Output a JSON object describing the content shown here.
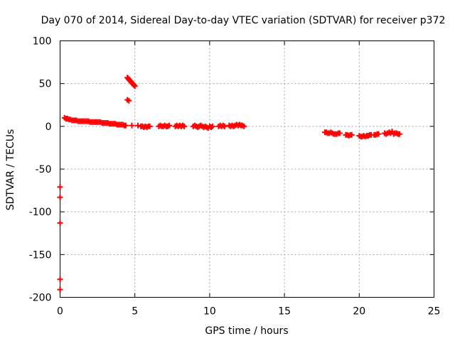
{
  "chart_data": {
    "type": "scatter",
    "title": "Day 070 of 2014, Sidereal Day-to-day VTEC variation (SDTVAR) for receiver p372",
    "xlabel": "GPS time / hours",
    "ylabel": "SDTVAR / TECUs",
    "xlim": [
      0,
      25
    ],
    "ylim": [
      -200,
      100
    ],
    "xticks": [
      0,
      5,
      10,
      15,
      20,
      25
    ],
    "yticks": [
      -200,
      -150,
      -100,
      -50,
      0,
      50,
      100
    ],
    "grid": true,
    "marker": "plus",
    "color": "#ff0000",
    "series": [
      {
        "name": "SDTVAR",
        "points": [
          [
            0.0,
            -71
          ],
          [
            0.0,
            -83
          ],
          [
            0.0,
            -113
          ],
          [
            0.0,
            -179
          ],
          [
            0.0,
            -191
          ],
          [
            0.3,
            10
          ],
          [
            0.4,
            9
          ],
          [
            0.5,
            9
          ],
          [
            0.6,
            8
          ],
          [
            0.7,
            8
          ],
          [
            0.8,
            7
          ],
          [
            0.9,
            7
          ],
          [
            1.0,
            7
          ],
          [
            1.1,
            7
          ],
          [
            1.2,
            6
          ],
          [
            1.3,
            6
          ],
          [
            1.4,
            6
          ],
          [
            1.5,
            6
          ],
          [
            1.6,
            6
          ],
          [
            1.7,
            6
          ],
          [
            1.8,
            6
          ],
          [
            1.9,
            6
          ],
          [
            2.0,
            5
          ],
          [
            2.1,
            5
          ],
          [
            2.2,
            5
          ],
          [
            2.3,
            5
          ],
          [
            2.4,
            5
          ],
          [
            2.5,
            5
          ],
          [
            2.6,
            5
          ],
          [
            2.7,
            5
          ],
          [
            2.8,
            4
          ],
          [
            2.9,
            4
          ],
          [
            3.0,
            4
          ],
          [
            3.1,
            4
          ],
          [
            3.2,
            4
          ],
          [
            3.3,
            3
          ],
          [
            3.4,
            3
          ],
          [
            3.5,
            3
          ],
          [
            3.6,
            3
          ],
          [
            3.7,
            3
          ],
          [
            3.8,
            2
          ],
          [
            3.9,
            2
          ],
          [
            4.0,
            2
          ],
          [
            4.1,
            2
          ],
          [
            4.2,
            2
          ],
          [
            4.3,
            1
          ],
          [
            4.4,
            1
          ],
          [
            4.5,
            31
          ],
          [
            4.6,
            30
          ],
          [
            4.5,
            57
          ],
          [
            4.55,
            56
          ],
          [
            4.6,
            55
          ],
          [
            4.65,
            54
          ],
          [
            4.7,
            53
          ],
          [
            4.75,
            52
          ],
          [
            4.8,
            51
          ],
          [
            4.85,
            50
          ],
          [
            4.9,
            49
          ],
          [
            4.95,
            48
          ],
          [
            5.0,
            47
          ],
          [
            4.8,
            1
          ],
          [
            5.2,
            1
          ],
          [
            5.4,
            0
          ],
          [
            5.5,
            0
          ],
          [
            5.6,
            -1
          ],
          [
            5.7,
            0
          ],
          [
            5.8,
            -1
          ],
          [
            5.9,
            0
          ],
          [
            6.0,
            0
          ],
          [
            6.6,
            0
          ],
          [
            6.7,
            1
          ],
          [
            6.8,
            0
          ],
          [
            6.9,
            0
          ],
          [
            7.0,
            1
          ],
          [
            7.1,
            0
          ],
          [
            7.2,
            0
          ],
          [
            7.3,
            1
          ],
          [
            7.7,
            0
          ],
          [
            7.8,
            1
          ],
          [
            7.9,
            0
          ],
          [
            8.0,
            1
          ],
          [
            8.1,
            0
          ],
          [
            8.2,
            1
          ],
          [
            8.3,
            0
          ],
          [
            8.9,
            0
          ],
          [
            9.0,
            1
          ],
          [
            9.1,
            0
          ],
          [
            9.2,
            -1
          ],
          [
            9.3,
            0
          ],
          [
            9.4,
            1
          ],
          [
            9.5,
            0
          ],
          [
            9.6,
            -1
          ],
          [
            9.7,
            0
          ],
          [
            9.8,
            -1
          ],
          [
            9.9,
            -2
          ],
          [
            10.0,
            0
          ],
          [
            10.1,
            -1
          ],
          [
            10.2,
            0
          ],
          [
            10.6,
            0
          ],
          [
            10.7,
            1
          ],
          [
            10.8,
            0
          ],
          [
            10.9,
            1
          ],
          [
            11.0,
            0
          ],
          [
            11.3,
            1
          ],
          [
            11.4,
            0
          ],
          [
            11.5,
            1
          ],
          [
            11.6,
            0
          ],
          [
            11.7,
            1
          ],
          [
            11.8,
            2
          ],
          [
            11.9,
            1
          ],
          [
            12.0,
            2
          ],
          [
            12.1,
            1
          ],
          [
            12.2,
            1
          ],
          [
            12.3,
            0
          ],
          [
            17.7,
            -7
          ],
          [
            17.8,
            -7
          ],
          [
            17.9,
            -8
          ],
          [
            18.0,
            -8
          ],
          [
            18.1,
            -7
          ],
          [
            18.2,
            -8
          ],
          [
            18.3,
            -9
          ],
          [
            18.4,
            -9
          ],
          [
            18.5,
            -9
          ],
          [
            18.6,
            -8
          ],
          [
            18.7,
            -8
          ],
          [
            19.1,
            -10
          ],
          [
            19.2,
            -10
          ],
          [
            19.3,
            -11
          ],
          [
            19.4,
            -10
          ],
          [
            19.5,
            -10
          ],
          [
            20.0,
            -11
          ],
          [
            20.1,
            -12
          ],
          [
            20.2,
            -12
          ],
          [
            20.3,
            -11
          ],
          [
            20.4,
            -12
          ],
          [
            20.5,
            -11
          ],
          [
            20.6,
            -11
          ],
          [
            20.7,
            -10
          ],
          [
            20.8,
            -10
          ],
          [
            21.0,
            -10
          ],
          [
            21.1,
            -10
          ],
          [
            21.2,
            -9
          ],
          [
            21.3,
            -9
          ],
          [
            21.7,
            -8
          ],
          [
            21.8,
            -9
          ],
          [
            21.9,
            -8
          ],
          [
            22.0,
            -7
          ],
          [
            22.1,
            -8
          ],
          [
            22.2,
            -6
          ],
          [
            22.3,
            -9
          ],
          [
            22.4,
            -8
          ],
          [
            22.5,
            -8
          ],
          [
            22.6,
            -9
          ],
          [
            22.7,
            -9
          ]
        ]
      }
    ]
  }
}
